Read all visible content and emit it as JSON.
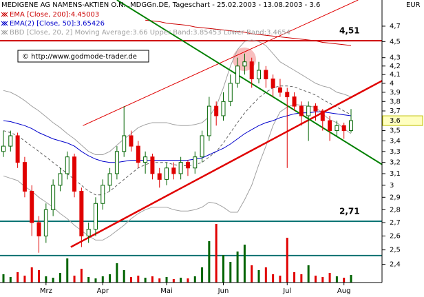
{
  "chart_data": {
    "type": "candlestick",
    "title": "MEDIGENE AG NAMENS-AKTIEN O.N. .MDGGn.DE, Tageschart - 25.02.2003 - 13.08.2003 - 3.6",
    "copyright": "© http://www.godmode-trader.de",
    "currency": "EUR",
    "log_scale": true,
    "ylim": [
      2.28,
      5.06
    ],
    "yticks": [
      {
        "value": 4.7,
        "label": "4,7"
      },
      {
        "value": 4.5,
        "label": "4,5"
      },
      {
        "value": 4.3,
        "label": "4,3"
      },
      {
        "value": 4.2,
        "label": "4,2"
      },
      {
        "value": 4.1,
        "label": "4,1"
      },
      {
        "value": 4,
        "label": "4"
      },
      {
        "value": 3.9,
        "label": "3,9"
      },
      {
        "value": 3.8,
        "label": "3,8"
      },
      {
        "value": 3.7,
        "label": "3,7"
      },
      {
        "value": 3.5,
        "label": "3,5"
      },
      {
        "value": 3.4,
        "label": "3,4"
      },
      {
        "value": 3.3,
        "label": "3,3"
      },
      {
        "value": 3.2,
        "label": "3,2"
      },
      {
        "value": 3.1,
        "label": "3,1"
      },
      {
        "value": 3,
        "label": "3"
      },
      {
        "value": 2.9,
        "label": "2,9"
      },
      {
        "value": 2.8,
        "label": "2,8"
      },
      {
        "value": 2.7,
        "label": "2,7"
      },
      {
        "value": 2.6,
        "label": "2,6"
      },
      {
        "value": 2.5,
        "label": "2,5"
      },
      {
        "value": 2.4,
        "label": "2,4"
      }
    ],
    "categories": [
      null,
      null,
      null,
      null,
      null,
      null,
      "Mrz",
      null,
      null,
      null,
      null,
      null,
      null,
      null,
      "Apr",
      null,
      null,
      null,
      null,
      null,
      null,
      null,
      null,
      "Mai",
      null,
      null,
      null,
      null,
      null,
      null,
      null,
      "Jun",
      null,
      null,
      null,
      null,
      null,
      null,
      null,
      null,
      "Jul",
      null,
      null,
      null,
      null,
      null,
      null,
      null,
      "Aug",
      null
    ],
    "up_color": "#006400",
    "down_color": "#e00000",
    "open": [
      3.3,
      3.35,
      3.45,
      3.2,
      2.95,
      2.7,
      2.6,
      2.8,
      3.0,
      3.1,
      3.25,
      2.95,
      2.6,
      2.65,
      2.85,
      3.0,
      3.1,
      3.3,
      3.45,
      3.35,
      3.2,
      3.25,
      3.1,
      3.05,
      3.15,
      3.1,
      3.2,
      3.15,
      3.25,
      3.45,
      3.75,
      3.65,
      3.8,
      4.0,
      4.2,
      4.25,
      4.05,
      4.15,
      4.05,
      3.95,
      3.9,
      3.85,
      3.75,
      3.65,
      3.75,
      3.7,
      3.6,
      3.5,
      3.55,
      3.5
    ],
    "high": [
      3.5,
      3.5,
      3.48,
      3.25,
      3.0,
      2.75,
      2.85,
      3.05,
      3.15,
      3.3,
      3.28,
      2.98,
      2.7,
      2.9,
      3.05,
      3.15,
      3.35,
      3.75,
      3.5,
      3.4,
      3.3,
      3.28,
      3.15,
      3.2,
      3.2,
      3.25,
      3.22,
      3.3,
      3.5,
      3.85,
      3.8,
      3.9,
      4.1,
      4.3,
      4.35,
      4.3,
      4.25,
      4.2,
      4.1,
      4.05,
      3.95,
      3.9,
      3.8,
      3.8,
      3.78,
      3.72,
      3.65,
      3.6,
      3.58,
      3.72
    ],
    "low": [
      3.25,
      3.3,
      3.15,
      2.9,
      2.6,
      2.48,
      2.55,
      2.75,
      2.95,
      3.05,
      2.9,
      2.52,
      2.55,
      2.6,
      2.8,
      2.95,
      3.05,
      3.25,
      3.3,
      3.15,
      3.1,
      3.05,
      2.98,
      3.0,
      3.05,
      3.05,
      3.08,
      3.1,
      3.2,
      3.4,
      3.55,
      3.6,
      3.75,
      3.95,
      4.1,
      3.95,
      4.0,
      3.95,
      3.85,
      3.85,
      3.15,
      3.7,
      3.55,
      3.4,
      3.6,
      3.5,
      3.4,
      3.45,
      3.42,
      3.48
    ],
    "close": [
      3.35,
      3.45,
      3.2,
      2.95,
      2.7,
      2.6,
      2.8,
      3.0,
      3.1,
      3.25,
      2.95,
      2.6,
      2.65,
      2.85,
      3.0,
      3.1,
      3.3,
      3.45,
      3.35,
      3.2,
      3.25,
      3.1,
      3.05,
      3.15,
      3.1,
      3.2,
      3.15,
      3.25,
      3.45,
      3.75,
      3.65,
      3.8,
      4.0,
      4.2,
      4.25,
      4.05,
      4.15,
      4.05,
      3.95,
      3.9,
      3.85,
      3.75,
      3.65,
      3.75,
      3.7,
      3.6,
      3.5,
      3.55,
      3.5,
      3.6
    ],
    "volume": [
      12,
      8,
      15,
      10,
      22,
      18,
      9,
      7,
      14,
      35,
      10,
      20,
      8,
      6,
      9,
      12,
      28,
      18,
      8,
      10,
      7,
      9,
      6,
      8,
      5,
      7,
      6,
      9,
      22,
      60,
      85,
      40,
      30,
      45,
      55,
      25,
      18,
      22,
      12,
      10,
      65,
      15,
      12,
      25,
      10,
      8,
      14,
      9,
      7,
      11
    ],
    "indicators": [
      {
        "name": "EMA [Close, 200]:4.45003",
        "color": "#cc0000",
        "values": [
          null,
          null,
          null,
          null,
          null,
          null,
          null,
          null,
          null,
          null,
          null,
          null,
          null,
          null,
          null,
          null,
          null,
          null,
          null,
          null,
          4.78,
          4.77,
          4.76,
          4.74,
          4.73,
          4.72,
          4.71,
          4.69,
          4.68,
          4.67,
          4.66,
          4.65,
          4.64,
          4.63,
          4.62,
          4.6,
          4.59,
          4.58,
          4.57,
          4.56,
          4.55,
          4.54,
          4.53,
          4.52,
          4.51,
          4.49,
          4.48,
          4.47,
          4.46,
          4.45
        ]
      },
      {
        "name": "EMA(2) [Close, 50]:3.65426",
        "color": "#0000cc",
        "values": [
          3.6,
          3.59,
          3.57,
          3.55,
          3.52,
          3.48,
          3.45,
          3.42,
          3.4,
          3.38,
          3.35,
          3.3,
          3.26,
          3.23,
          3.21,
          3.2,
          3.2,
          3.21,
          3.22,
          3.22,
          3.22,
          3.22,
          3.22,
          3.22,
          3.22,
          3.22,
          3.22,
          3.23,
          3.24,
          3.27,
          3.3,
          3.33,
          3.37,
          3.42,
          3.47,
          3.51,
          3.55,
          3.58,
          3.6,
          3.63,
          3.65,
          3.67,
          3.68,
          3.68,
          3.69,
          3.69,
          3.68,
          3.67,
          3.66,
          3.65
        ]
      }
    ],
    "bollinger": {
      "name": "BBD [Close, 20, 2] Moving Average:3.66 Upper Band:3.85453 Lower Band:3.4654",
      "color": "#a0a0a0",
      "ma": [
        3.5,
        3.48,
        3.45,
        3.4,
        3.35,
        3.3,
        3.25,
        3.2,
        3.15,
        3.1,
        3.05,
        3.0,
        2.95,
        2.92,
        2.92,
        2.95,
        3.0,
        3.05,
        3.1,
        3.15,
        3.18,
        3.2,
        3.2,
        3.2,
        3.18,
        3.17,
        3.17,
        3.18,
        3.2,
        3.25,
        3.3,
        3.38,
        3.48,
        3.58,
        3.68,
        3.76,
        3.84,
        3.9,
        3.95,
        3.97,
        3.97,
        3.96,
        3.93,
        3.9,
        3.87,
        3.82,
        3.78,
        3.74,
        3.7,
        3.66
      ],
      "upper": [
        3.92,
        3.9,
        3.86,
        3.81,
        3.75,
        3.7,
        3.64,
        3.58,
        3.53,
        3.47,
        3.42,
        3.36,
        3.3,
        3.27,
        3.27,
        3.3,
        3.36,
        3.42,
        3.47,
        3.53,
        3.56,
        3.58,
        3.58,
        3.58,
        3.56,
        3.55,
        3.55,
        3.56,
        3.58,
        3.64,
        3.75,
        3.95,
        4.2,
        4.4,
        4.5,
        4.52,
        4.5,
        4.45,
        4.35,
        4.25,
        4.2,
        4.15,
        4.1,
        4.05,
        4.0,
        3.97,
        3.95,
        3.9,
        3.88,
        3.85
      ],
      "lower": [
        3.08,
        3.06,
        3.04,
        2.99,
        2.95,
        2.9,
        2.86,
        2.82,
        2.77,
        2.73,
        2.68,
        2.64,
        2.6,
        2.57,
        2.57,
        2.6,
        2.64,
        2.68,
        2.73,
        2.77,
        2.8,
        2.82,
        2.82,
        2.82,
        2.8,
        2.79,
        2.79,
        2.8,
        2.82,
        2.86,
        2.85,
        2.82,
        2.78,
        2.78,
        2.88,
        3.0,
        3.18,
        3.35,
        3.55,
        3.69,
        3.74,
        3.77,
        3.76,
        3.75,
        3.74,
        3.67,
        3.61,
        3.58,
        3.52,
        3.47
      ]
    },
    "levels": [
      {
        "value": 4.51,
        "label": "4,51",
        "color": "#cc0000"
      },
      {
        "value": 2.71,
        "label": "2,71",
        "color": "#007070"
      },
      {
        "value": 2.46,
        "color": "#007070"
      }
    ],
    "trendlines": [
      {
        "color": "#e00000",
        "width": 1,
        "points": [
          [
            11.2,
            3.55
          ],
          [
            50,
            5.06
          ]
        ]
      },
      {
        "color": "#e00000",
        "width": 2.5,
        "points": [
          [
            9.5,
            2.52
          ],
          [
            53.4,
            4.03
          ]
        ]
      },
      {
        "color": "#008000",
        "width": 2,
        "points": [
          [
            16,
            5.06
          ],
          [
            53.4,
            3.18
          ]
        ]
      }
    ]
  }
}
